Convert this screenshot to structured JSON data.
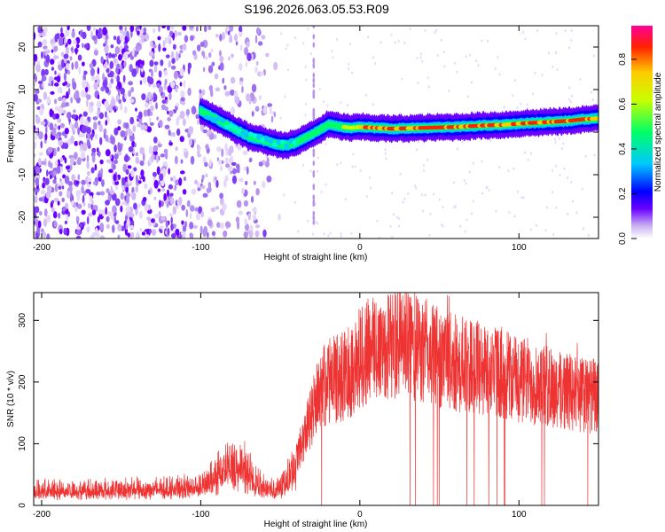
{
  "title": "S196.2026.063.05.53.R09",
  "chart_data": [
    {
      "type": "heatmap",
      "xlabel": "Height of straight line (km)",
      "ylabel": "Frequency (Hz)",
      "xlim": [
        -205,
        150
      ],
      "ylim": [
        -25,
        25
      ],
      "xticks": [
        -200,
        -100,
        0,
        100
      ],
      "yticks": [
        -20,
        -10,
        0,
        10,
        20
      ],
      "colorbar": {
        "label": "Normalized spectral amplitude",
        "range": [
          0,
          0.95
        ],
        "ticks": [
          0.0,
          0.2,
          0.4,
          0.6,
          0.8
        ],
        "colors": [
          "#ffffff",
          "#c8b0f2",
          "#6a00ff",
          "#0000ff",
          "#00c8ff",
          "#00ff66",
          "#c8ff00",
          "#ffcc00",
          "#ff2200",
          "#ff0099"
        ]
      },
      "trace": {
        "x": [
          -100,
          -95,
          -90,
          -85,
          -80,
          -75,
          -70,
          -65,
          -60,
          -55,
          -50,
          -45,
          -40,
          -35,
          -30,
          -25,
          -20,
          -15,
          -10,
          -5,
          0,
          10,
          20,
          30,
          40,
          50,
          60,
          70,
          80,
          90,
          100,
          110,
          120,
          130,
          140,
          150
        ],
        "y": [
          5,
          4,
          3,
          2,
          1,
          0,
          -1,
          -1.5,
          -2,
          -2.5,
          -3,
          -3,
          -2.5,
          -1.5,
          -0.5,
          0.5,
          1.8,
          1.5,
          1.2,
          1,
          1.2,
          1,
          0.8,
          0.9,
          1,
          1.1,
          1.2,
          1.4,
          1.6,
          1.7,
          2,
          2.2,
          2.4,
          2.6,
          3,
          3.2
        ]
      },
      "noise_region_x": [
        -205,
        -50
      ]
    },
    {
      "type": "line",
      "xlabel": "Height of straight line (km)",
      "ylabel": "SNR (10 * v/v)",
      "xlim": [
        -205,
        150
      ],
      "ylim": [
        0,
        345
      ],
      "xticks": [
        -200,
        -100,
        0,
        100
      ],
      "yticks": [
        0,
        100,
        200,
        300
      ],
      "color": "#ee3333",
      "envelope": {
        "x": [
          -205,
          -150,
          -110,
          -100,
          -95,
          -90,
          -85,
          -80,
          -75,
          -70,
          -65,
          -60,
          -55,
          -50,
          -45,
          -40,
          -35,
          -30,
          -25,
          -20,
          -15,
          -10,
          -5,
          0,
          5,
          10,
          15,
          20,
          25,
          30,
          35,
          40,
          45,
          50,
          60,
          70,
          80,
          90,
          100,
          110,
          120,
          130,
          140,
          150
        ],
        "y": [
          25,
          27,
          30,
          34,
          40,
          52,
          62,
          72,
          65,
          55,
          40,
          30,
          28,
          30,
          45,
          75,
          110,
          150,
          185,
          200,
          205,
          210,
          220,
          240,
          250,
          255,
          258,
          262,
          265,
          262,
          255,
          250,
          245,
          240,
          230,
          225,
          220,
          215,
          205,
          200,
          190,
          185,
          180,
          175
        ]
      }
    }
  ]
}
